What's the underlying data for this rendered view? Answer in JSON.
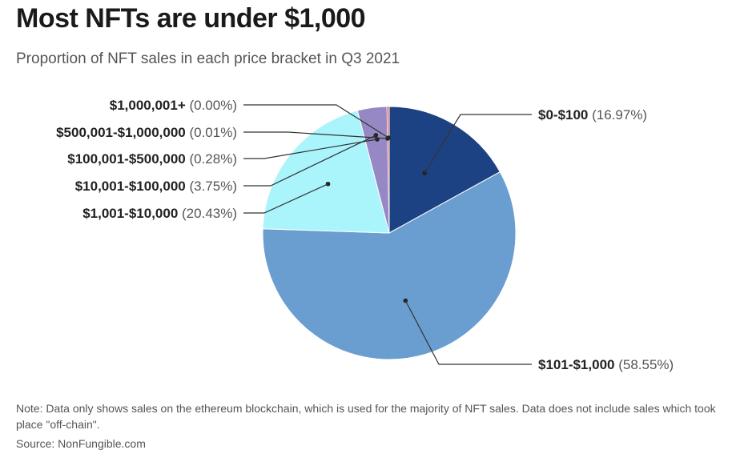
{
  "title": "Most NFTs are under $1,000",
  "subtitle": "Proportion of NFT sales in each price bracket in Q3 2021",
  "note": "Note: Data only shows sales on the ethereum blockchain, which is used for the majority of NFT sales. Data does not include sales which took place \"off-chain\".",
  "source": "Source: NonFungible.com",
  "chart_data": {
    "type": "pie",
    "unit": "%",
    "slices": [
      {
        "label": "$0-$100",
        "value": 16.97,
        "display": "(16.97%)",
        "color": "#1d4283"
      },
      {
        "label": "$101-$1,000",
        "value": 58.55,
        "display": "(58.55%)",
        "color": "#6a9ed0"
      },
      {
        "label": "$1,001-$10,000",
        "value": 20.43,
        "display": "(20.43%)",
        "color": "#aaf4fb"
      },
      {
        "label": "$10,001-$100,000",
        "value": 3.75,
        "display": "(3.75%)",
        "color": "#9688c4"
      },
      {
        "label": "$100,001-$500,000",
        "value": 0.28,
        "display": "(0.28%)",
        "color": "#e87e88"
      },
      {
        "label": "$500,001-$1,000,000",
        "value": 0.01,
        "display": "(0.01%)",
        "color": "#c8212e"
      },
      {
        "label": "$1,000,001+",
        "value": 0.0,
        "display": "(0.00%)",
        "color": "#7a0f1a"
      }
    ]
  }
}
